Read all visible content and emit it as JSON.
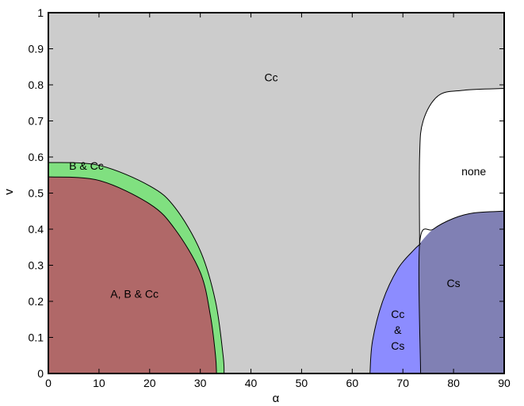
{
  "chart_data": {
    "type": "area",
    "title": "",
    "xlabel": "α",
    "ylabel": "v",
    "xlim": [
      0,
      90
    ],
    "ylim": [
      0,
      1
    ],
    "grid": false,
    "xticks": [
      "0",
      "10",
      "20",
      "30",
      "40",
      "50",
      "60",
      "70",
      "80",
      "90"
    ],
    "yticks": [
      "0",
      "0.1",
      "0.2",
      "0.3",
      "0.4",
      "0.5",
      "0.6",
      "0.7",
      "0.8",
      "0.9",
      "1"
    ],
    "regions": [
      {
        "label": "Cc",
        "color": "#cccccc",
        "label_at": [
          44,
          0.81
        ],
        "description": "background region covering the whole plane"
      },
      {
        "label": "B & Cc",
        "color": "#80e080",
        "label_at": [
          7.5,
          0.565
        ],
        "boundary": [
          [
            0,
            0.585
          ],
          [
            10,
            0.577
          ],
          [
            20,
            0.52
          ],
          [
            25,
            0.46
          ],
          [
            30,
            0.34
          ],
          [
            33,
            0.2
          ],
          [
            34.5,
            0.05
          ],
          [
            34.7,
            0
          ]
        ]
      },
      {
        "label": "A, B & Cc",
        "color": "#b06868",
        "label_at": [
          17,
          0.21
        ],
        "boundary": [
          [
            0,
            0.545
          ],
          [
            10,
            0.535
          ],
          [
            20,
            0.47
          ],
          [
            25,
            0.4
          ],
          [
            30,
            0.28
          ],
          [
            32,
            0.16
          ],
          [
            33,
            0.05
          ],
          [
            33.2,
            0
          ]
        ]
      },
      {
        "label": "Cc\n&\nCs",
        "lines": [
          "Cc",
          "&",
          "Cs"
        ],
        "color": "#8c8cff",
        "label_at": [
          69,
          0.11
        ],
        "boundary": [
          [
            63.5,
            0
          ],
          [
            64,
            0.09
          ],
          [
            66,
            0.2
          ],
          [
            69,
            0.29
          ],
          [
            72,
            0.34
          ],
          [
            73.5,
            0.36
          ]
        ]
      },
      {
        "label": "Cs",
        "color": "#8080b4",
        "label_at": [
          80,
          0.24
        ],
        "boundary": [
          [
            73.5,
            0
          ],
          [
            73.3,
            0.36
          ],
          [
            76,
            0.4
          ],
          [
            80,
            0.43
          ],
          [
            84,
            0.445
          ],
          [
            90,
            0.45
          ]
        ]
      },
      {
        "label": "none",
        "color": "#ffffff",
        "label_at": [
          84,
          0.55
        ],
        "boundary": [
          [
            73.3,
            0.36
          ],
          [
            73.3,
            0.6
          ],
          [
            74,
            0.7
          ],
          [
            77,
            0.77
          ],
          [
            82,
            0.785
          ],
          [
            90,
            0.79
          ]
        ]
      }
    ]
  }
}
